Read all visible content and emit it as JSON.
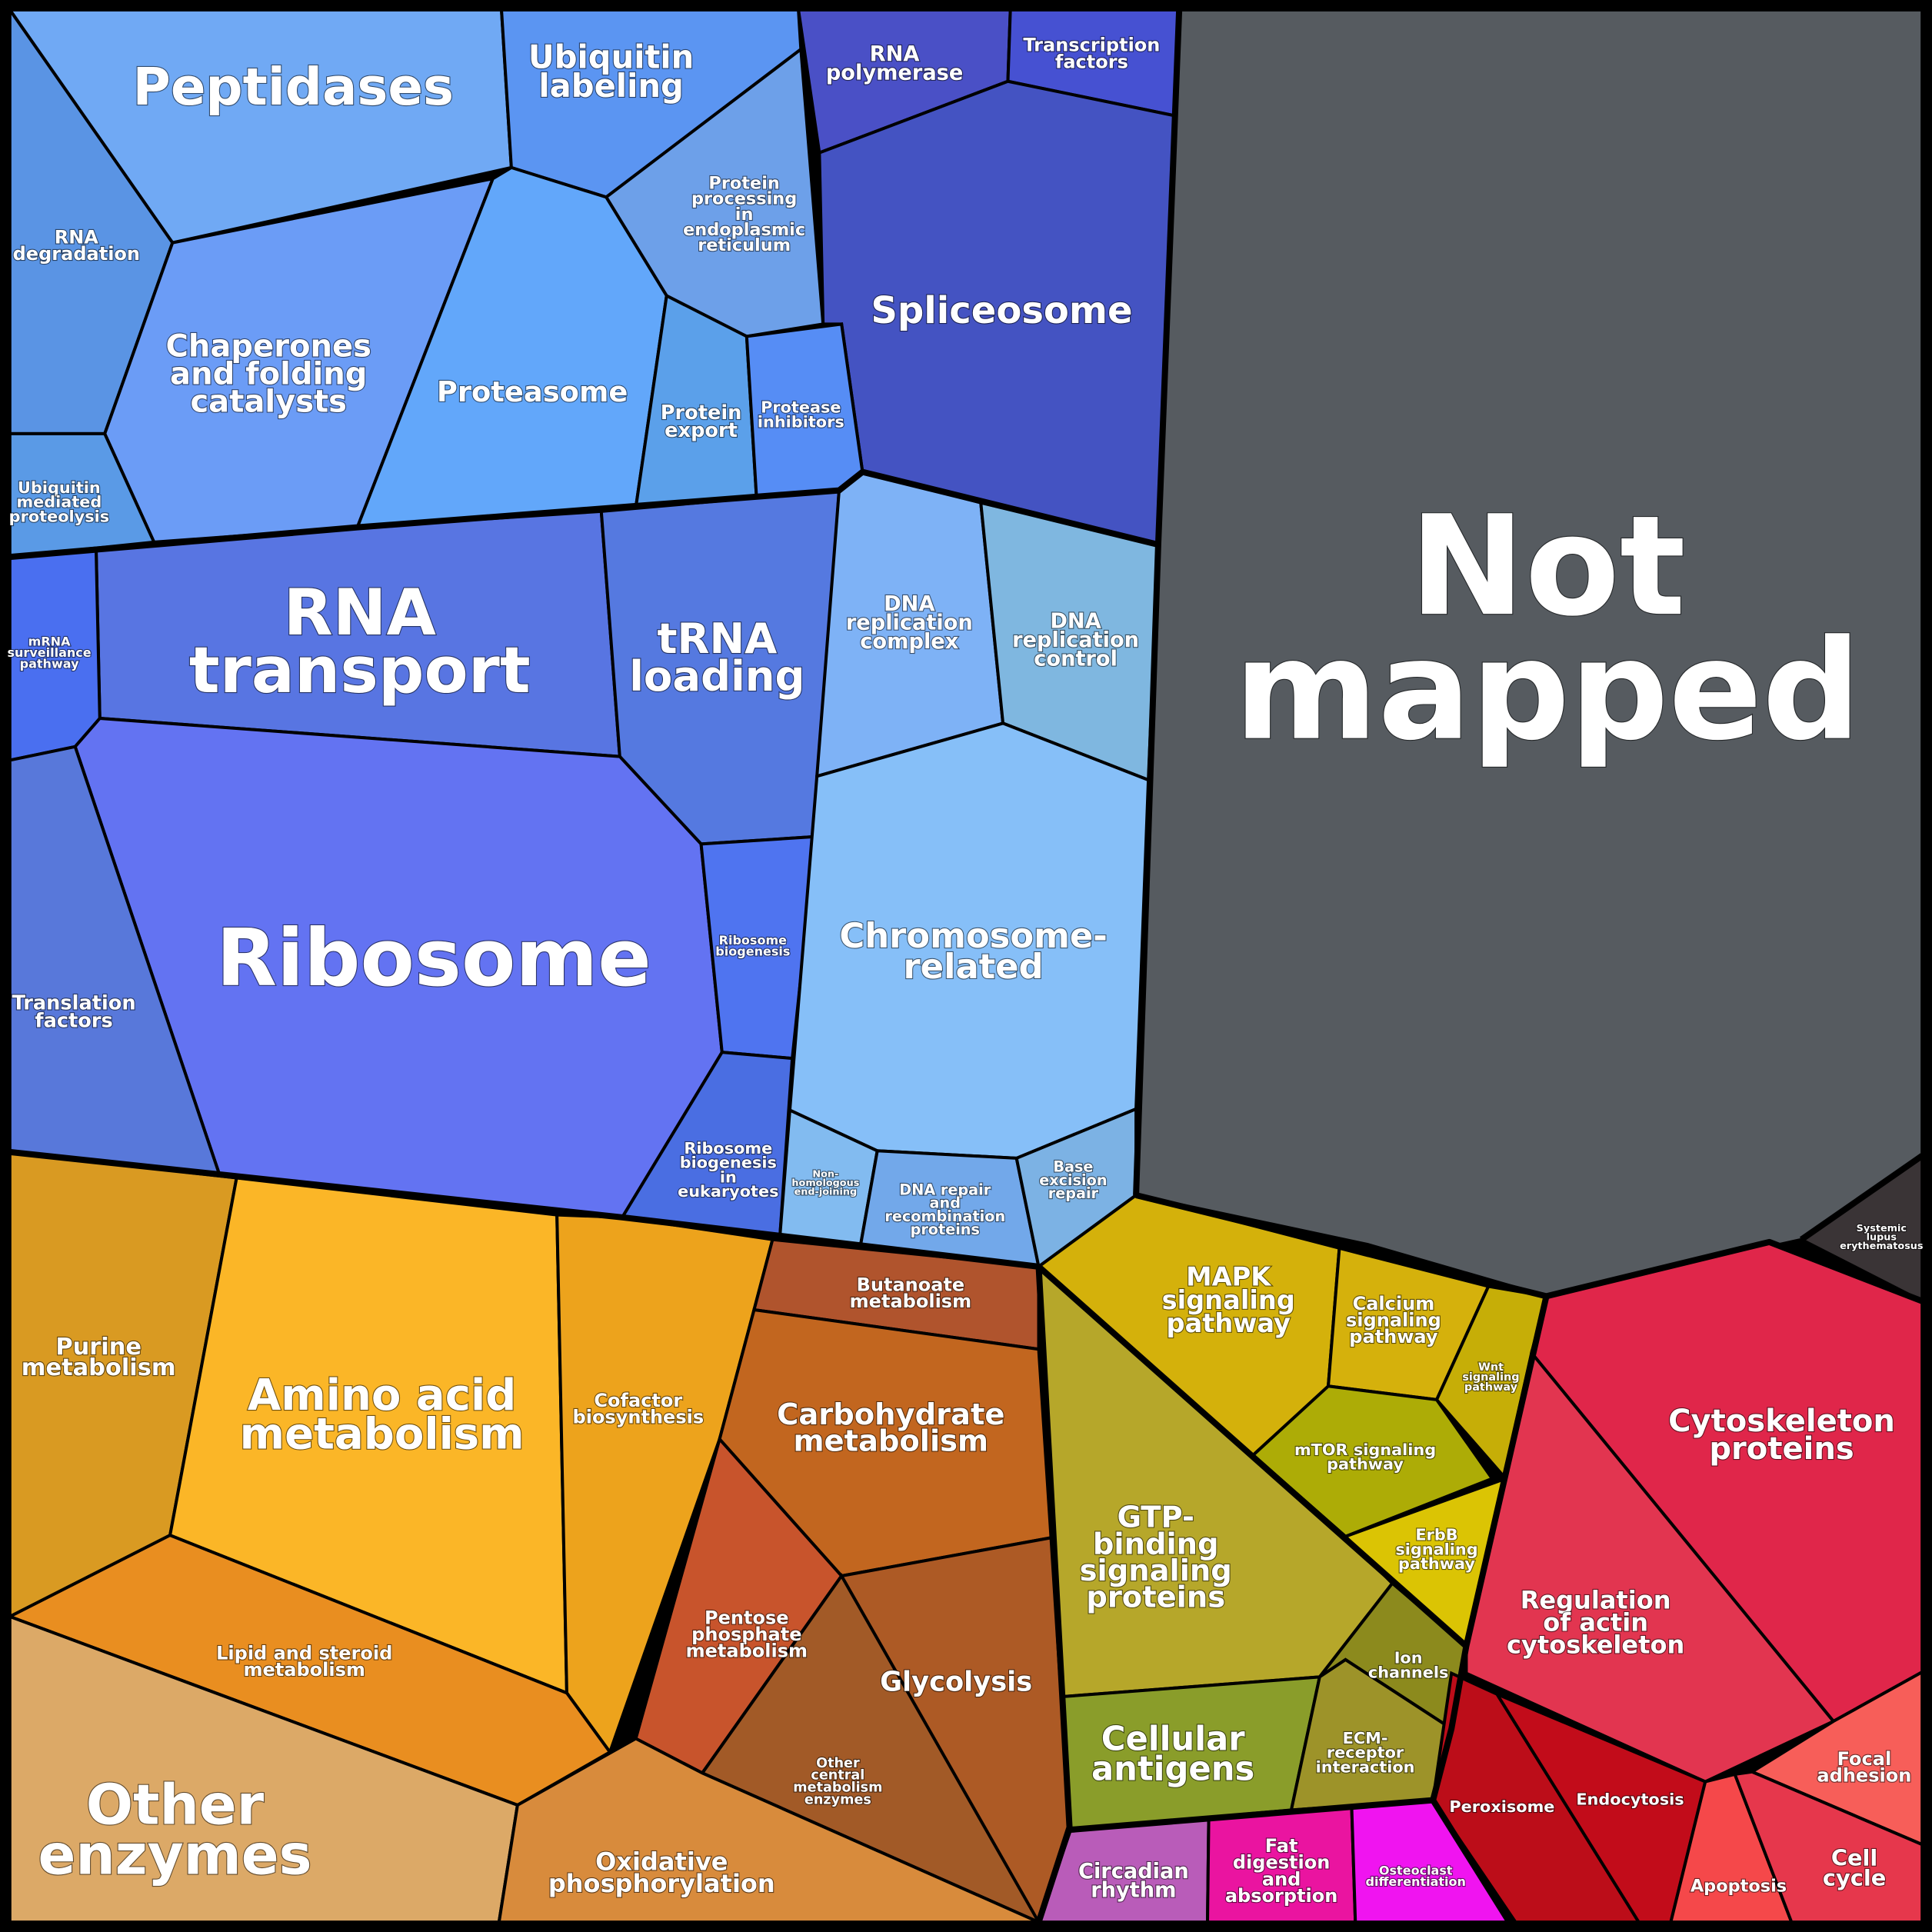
{
  "chart_data": {
    "type": "voronoi-treemap",
    "cells": [
      {
        "id": "peptidases",
        "label": "Peptidases",
        "color": "#70a9f4"
      },
      {
        "id": "ubiquitin-labeling",
        "label": "Ubiquitin labeling",
        "color": "#5b95f2"
      },
      {
        "id": "rna-polymerase",
        "label": "RNA polymerase",
        "color": "#4a50c6"
      },
      {
        "id": "transcription-factors",
        "label": "Transcription factors",
        "color": "#4651d2"
      },
      {
        "id": "not-mapped",
        "label": "Not mapped",
        "color": "#565b60"
      },
      {
        "id": "rna-degradation",
        "label": "RNA degradation",
        "color": "#5a94e4"
      },
      {
        "id": "chaperones",
        "label": "Chaperones and folding catalysts",
        "color": "#6b9cf6"
      },
      {
        "id": "protein-processing-er",
        "label": "Protein processing in endoplasmic reticulum",
        "color": "#6da0e9"
      },
      {
        "id": "spliceosome",
        "label": "Spliceosome",
        "color": "#4453c2"
      },
      {
        "id": "proteasome",
        "label": "Proteasome",
        "color": "#62a7fa"
      },
      {
        "id": "protein-export",
        "label": "Protein export",
        "color": "#5ba0ea"
      },
      {
        "id": "protease-inhibitors",
        "label": "Protease inhibitors",
        "color": "#568df5"
      },
      {
        "id": "ubiquitin-mediated-proteolysis",
        "label": "Ubiquitin mediated proteolysis",
        "color": "#5a9ae6"
      },
      {
        "id": "rna-transport",
        "label": "RNA transport",
        "color": "#5875e2"
      },
      {
        "id": "trna-loading",
        "label": "tRNA loading",
        "color": "#5579e0"
      },
      {
        "id": "mrna-surveillance",
        "label": "mRNA surveillance pathway",
        "color": "#4a6ff0"
      },
      {
        "id": "dna-replication-complex",
        "label": "DNA replication complex",
        "color": "#7eb2f6"
      },
      {
        "id": "dna-replication-control",
        "label": "DNA replication control",
        "color": "#7fb7e0"
      },
      {
        "id": "ribosome",
        "label": "Ribosome",
        "color": "#6373f2"
      },
      {
        "id": "ribosome-biogenesis",
        "label": "Ribosome biogenesis",
        "color": "#4f74f0"
      },
      {
        "id": "chromosome-related",
        "label": "Chromosome-related",
        "color": "#86bff8"
      },
      {
        "id": "translation-factors",
        "label": "Translation factors",
        "color": "#5878da"
      },
      {
        "id": "ribosome-biogenesis-eukaryotes",
        "label": "Ribosome biogenesis in eukaryotes",
        "color": "#4a6ee2"
      },
      {
        "id": "nhej",
        "label": "Non-homologous end-joining",
        "color": "#82bbf0"
      },
      {
        "id": "dna-repair",
        "label": "DNA repair and recombination proteins",
        "color": "#72a8ea"
      },
      {
        "id": "base-excision-repair",
        "label": "Base excision repair",
        "color": "#7cb2e4"
      },
      {
        "id": "systemic-lupus",
        "label": "Systemic lupus erythematosus",
        "color": "#3a3436"
      },
      {
        "id": "purine-metabolism",
        "label": "Purine metabolism",
        "color": "#d99a22"
      },
      {
        "id": "amino-acid-metabolism",
        "label": "Amino acid metabolism",
        "color": "#fbb627"
      },
      {
        "id": "cofactor-biosynthesis",
        "label": "Cofactor biosynthesis",
        "color": "#eda31c"
      },
      {
        "id": "butanoate-metabolism",
        "label": "Butanoate metabolism",
        "color": "#b0542d"
      },
      {
        "id": "mapk-signaling",
        "label": "MAPK signaling pathway",
        "color": "#d4b10b"
      },
      {
        "id": "calcium-signaling",
        "label": "Calcium signaling pathway",
        "color": "#d5b10c"
      },
      {
        "id": "wnt-signaling",
        "label": "Wnt signaling pathway",
        "color": "#c6ae07"
      },
      {
        "id": "carbohydrate-metabolism",
        "label": "Carbohydrate metabolism",
        "color": "#c2661f"
      },
      {
        "id": "cytoskeleton-proteins",
        "label": "Cytoskeleton proteins",
        "color": "#e0264a"
      },
      {
        "id": "mtor-signaling",
        "label": "mTOR signaling pathway",
        "color": "#adac06"
      },
      {
        "id": "gtp-binding",
        "label": "GTP-binding signaling proteins",
        "color": "#b6a72a"
      },
      {
        "id": "erbb-signaling",
        "label": "ErbB signaling pathway",
        "color": "#dbc404"
      },
      {
        "id": "lipid-steroid",
        "label": "Lipid and steroid metabolism",
        "color": "#e98e20"
      },
      {
        "id": "pentose-phosphate",
        "label": "Pentose phosphate metabolism",
        "color": "#c8542c"
      },
      {
        "id": "regulation-actin",
        "label": "Regulation of actin cytoskeleton",
        "color": "#e23550"
      },
      {
        "id": "ion-channels",
        "label": "Ion channels",
        "color": "#8c8a1d"
      },
      {
        "id": "glycolysis",
        "label": "Glycolysis",
        "color": "#ad5a25"
      },
      {
        "id": "other-central",
        "label": "Other central metabolism enzymes",
        "color": "#a25a27"
      },
      {
        "id": "cellular-antigens",
        "label": "Cellular antigens",
        "color": "#8a9d2a"
      },
      {
        "id": "ecm-receptor",
        "label": "ECM-receptor interaction",
        "color": "#9d9329"
      },
      {
        "id": "other-enzymes",
        "label": "Other enzymes",
        "color": "#dca967"
      },
      {
        "id": "oxidative-phosphorylation",
        "label": "Oxidative phosphorylation",
        "color": "#d88b3c"
      },
      {
        "id": "peroxisome",
        "label": "Peroxisome",
        "color": "#bc0d19"
      },
      {
        "id": "endocytosis",
        "label": "Endocytosis",
        "color": "#c20c1a"
      },
      {
        "id": "focal-adhesion",
        "label": "Focal adhesion",
        "color": "#f75e59"
      },
      {
        "id": "circadian-rhythm",
        "label": "Circadian rhythm",
        "color": "#b95cb9"
      },
      {
        "id": "fat-digestion",
        "label": "Fat digestion and absorption",
        "color": "#ea14a0"
      },
      {
        "id": "osteoclast-differentiation",
        "label": "Osteoclast differentiation",
        "color": "#f014f0"
      },
      {
        "id": "apoptosis",
        "label": "Apoptosis",
        "color": "#f5484a"
      },
      {
        "id": "cell-cycle",
        "label": "Cell cycle",
        "color": "#e6374c"
      }
    ]
  }
}
